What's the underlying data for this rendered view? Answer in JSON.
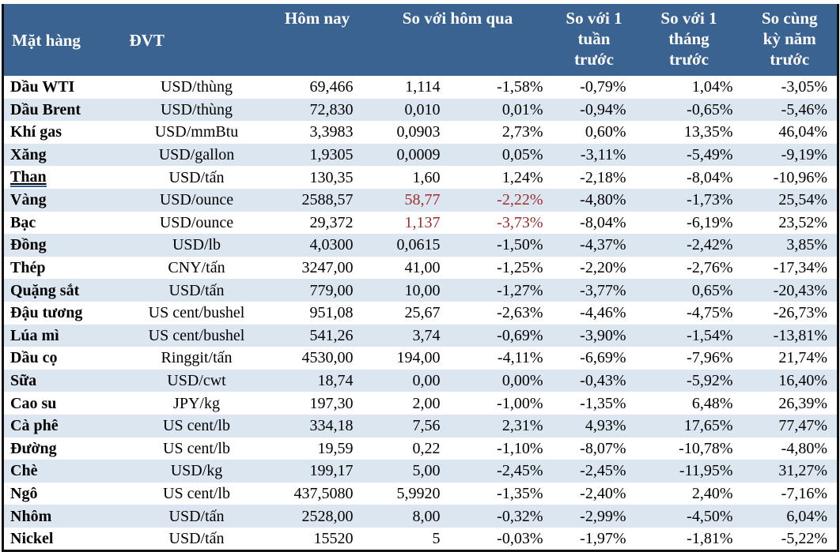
{
  "table": {
    "title_semantic": "commodity-price-table",
    "header": {
      "commodity": "Mặt hàng",
      "unit": "ĐVT",
      "today": "Hôm nay",
      "vs_yesterday": "So với hôm qua",
      "vs_week": "So với 1\ntuần\ntrước",
      "vs_month": "So với 1\ntháng\ntrước",
      "vs_year": "So cùng\nkỳ năm\ntrước"
    },
    "rows": [
      {
        "name": "Dầu WTI",
        "unit": "USD/thùng",
        "today": "69,466",
        "change": "1,114",
        "change_pct": "-1,58%",
        "week_pct": "-0,79%",
        "month_pct": "1,04%",
        "year_pct": "-3,05%"
      },
      {
        "name": "Dầu Brent",
        "unit": "USD/thùng",
        "today": "72,830",
        "change": "0,010",
        "change_pct": "0,01%",
        "week_pct": "-0,94%",
        "month_pct": "-0,65%",
        "year_pct": "-5,46%"
      },
      {
        "name": "Khí gas",
        "unit": "USD/mmBtu",
        "today": "3,3983",
        "change": "0,0903",
        "change_pct": "2,73%",
        "week_pct": "0,60%",
        "month_pct": "13,35%",
        "year_pct": "46,04%"
      },
      {
        "name": "Xăng",
        "unit": "USD/gallon",
        "today": "1,9305",
        "change": "0,0009",
        "change_pct": "0,05%",
        "week_pct": "-3,11%",
        "month_pct": "-5,49%",
        "year_pct": "-9,19%"
      },
      {
        "name": "Than",
        "unit": "USD/tấn",
        "today": "130,35",
        "change": "1,60",
        "change_pct": "1,24%",
        "week_pct": "-2,18%",
        "month_pct": "-8,04%",
        "year_pct": "-10,96%",
        "name_underlined": true
      },
      {
        "name": "Vàng",
        "unit": "USD/ounce",
        "today": "2588,57",
        "change": "58,77",
        "change_pct": "-2,22%",
        "week_pct": "-4,80%",
        "month_pct": "-1,73%",
        "year_pct": "25,54%",
        "change_highlight": true
      },
      {
        "name": "Bạc",
        "unit": "USD/ounce",
        "today": "29,372",
        "change": "1,137",
        "change_pct": "-3,73%",
        "week_pct": "-8,04%",
        "month_pct": "-6,19%",
        "year_pct": "23,52%",
        "change_highlight": true
      },
      {
        "name": "Đồng",
        "unit": "USD/lb",
        "today": "4,0300",
        "change": "0,0615",
        "change_pct": "-1,50%",
        "week_pct": "-4,37%",
        "month_pct": "-2,42%",
        "year_pct": "3,85%"
      },
      {
        "name": "Thép",
        "unit": "CNY/tấn",
        "today": "3247,00",
        "change": "41,00",
        "change_pct": "-1,25%",
        "week_pct": "-2,20%",
        "month_pct": "-2,76%",
        "year_pct": "-17,34%"
      },
      {
        "name": "Quặng sắt",
        "unit": "USD/tấn",
        "today": "779,00",
        "change": "10,00",
        "change_pct": "-1,27%",
        "week_pct": "-3,77%",
        "month_pct": "0,65%",
        "year_pct": "-20,43%"
      },
      {
        "name": "Đậu tương",
        "unit": "US cent/bushel",
        "today": "951,08",
        "change": "25,67",
        "change_pct": "-2,63%",
        "week_pct": "-4,46%",
        "month_pct": "-4,75%",
        "year_pct": "-26,73%"
      },
      {
        "name": "Lúa mì",
        "unit": "US cent/bushel",
        "today": "541,26",
        "change": "3,74",
        "change_pct": "-0,69%",
        "week_pct": "-3,90%",
        "month_pct": "-1,54%",
        "year_pct": "-13,81%"
      },
      {
        "name": "Dầu cọ",
        "unit": "Ringgit/tấn",
        "today": "4530,00",
        "change": "194,00",
        "change_pct": "-4,11%",
        "week_pct": "-6,69%",
        "month_pct": "-7,96%",
        "year_pct": "21,74%"
      },
      {
        "name": "Sữa",
        "unit": "USD/cwt",
        "today": "18,74",
        "change": "0,00",
        "change_pct": "0,00%",
        "week_pct": "-0,43%",
        "month_pct": "-5,92%",
        "year_pct": "16,40%"
      },
      {
        "name": "Cao su",
        "unit": "JPY/kg",
        "today": "197,30",
        "change": "2,00",
        "change_pct": "-1,00%",
        "week_pct": "-1,35%",
        "month_pct": "6,48%",
        "year_pct": "26,39%"
      },
      {
        "name": "Cà phê",
        "unit": "US cent/lb",
        "today": "334,18",
        "change": "7,56",
        "change_pct": "2,31%",
        "week_pct": "4,93%",
        "month_pct": "17,65%",
        "year_pct": "77,47%"
      },
      {
        "name": "Đường",
        "unit": "US cent/lb",
        "today": "19,59",
        "change": "0,22",
        "change_pct": "-1,10%",
        "week_pct": "-8,07%",
        "month_pct": "-10,78%",
        "year_pct": "-4,80%"
      },
      {
        "name": "Chè",
        "unit": "USD/kg",
        "today": "199,17",
        "change": "5,00",
        "change_pct": "-2,45%",
        "week_pct": "-2,45%",
        "month_pct": "-11,95%",
        "year_pct": "31,27%"
      },
      {
        "name": "Ngô",
        "unit": "US cent/lb",
        "today": "437,5080",
        "change": "5,9920",
        "change_pct": "-1,35%",
        "week_pct": "-2,40%",
        "month_pct": "2,40%",
        "year_pct": "-7,16%"
      },
      {
        "name": "Nhôm",
        "unit": "USD/tấn",
        "today": "2528,00",
        "change": "8,00",
        "change_pct": "-0,32%",
        "week_pct": "-2,99%",
        "month_pct": "-4,50%",
        "year_pct": "6,04%"
      },
      {
        "name": "Nickel",
        "unit": "USD/tấn",
        "today": "15520",
        "change": "5",
        "change_pct": "-0,03%",
        "week_pct": "-1,97%",
        "month_pct": "-1,81%",
        "year_pct": "-5,22%"
      }
    ]
  },
  "colors": {
    "header_bg": "#3a6391",
    "header_text": "#ffffff",
    "row_alt_bg": "#dce6f1",
    "negative_highlight": "#9c2d2d",
    "border": "#111111"
  }
}
